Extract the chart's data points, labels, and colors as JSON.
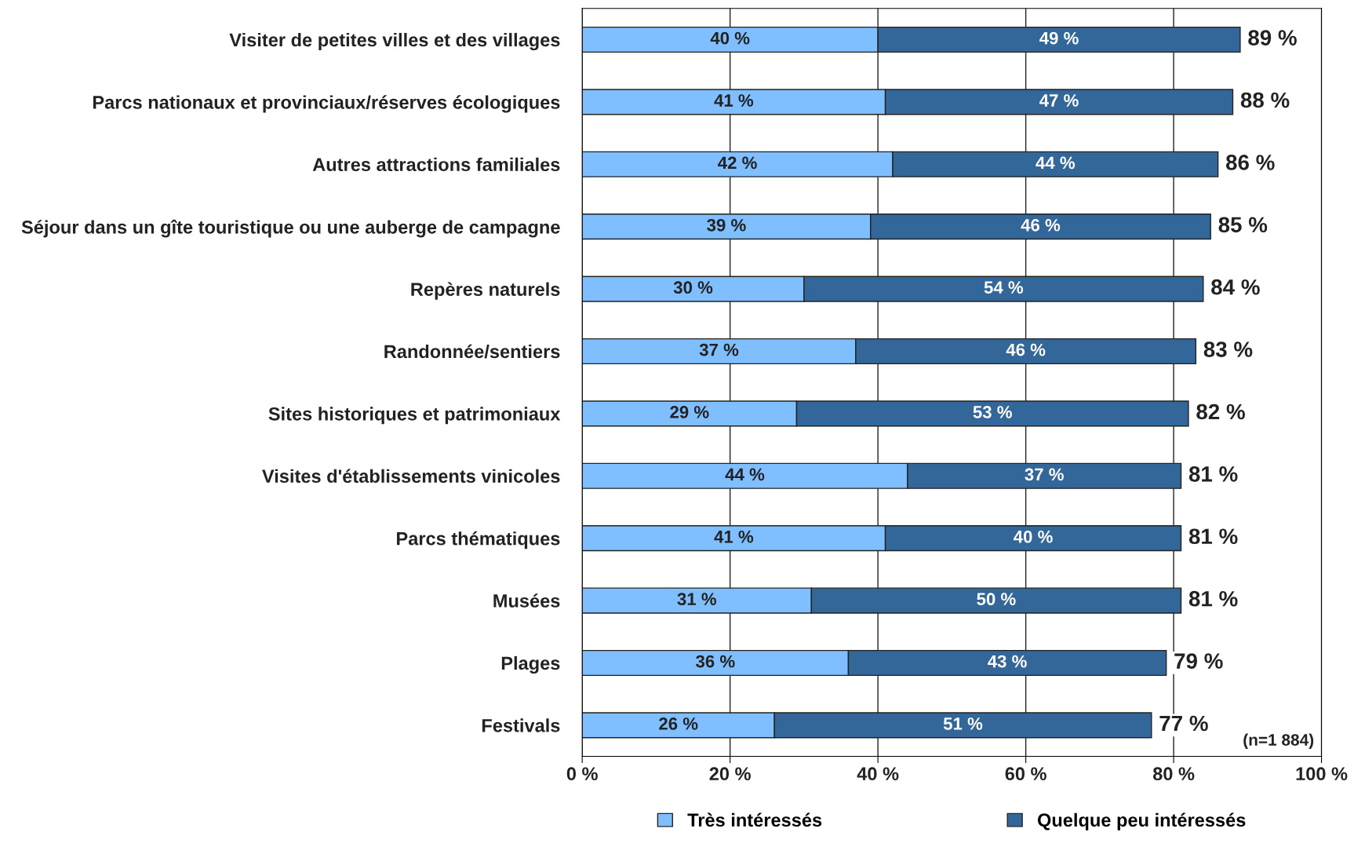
{
  "chart_data": {
    "type": "bar",
    "orientation": "horizontal",
    "stacked": true,
    "categories": [
      "Visiter de petites villes et des villages",
      "Parcs nationaux et provinciaux/réserves écologiques",
      "Autres attractions familiales",
      "Séjour dans un gîte touristique ou une auberge de campagne",
      "Repères naturels",
      "Randonnée/sentiers",
      "Sites historiques et patrimoniaux",
      "Visites d'établissements vinicoles",
      "Parcs thématiques",
      "Musées",
      "Plages",
      "Festivals"
    ],
    "series": [
      {
        "name": "Très intéressés",
        "color": "#7fbfff",
        "values": [
          40,
          41,
          42,
          39,
          30,
          37,
          29,
          44,
          41,
          31,
          36,
          26
        ],
        "value_labels": [
          "40 %",
          "41 %",
          "42 %",
          "39 %",
          "30 %",
          "37 %",
          "29 %",
          "44 %",
          "41 %",
          "31 %",
          "36 %",
          "26 %"
        ]
      },
      {
        "name": "Quelque peu intéressés",
        "color": "#336699",
        "values": [
          49,
          47,
          44,
          46,
          54,
          46,
          53,
          37,
          40,
          50,
          43,
          51
        ],
        "value_labels": [
          "49 %",
          "47 %",
          "44 %",
          "46 %",
          "54 %",
          "46 %",
          "53 %",
          "37 %",
          "40 %",
          "50 %",
          "43 %",
          "51 %"
        ]
      }
    ],
    "totals": [
      "89 %",
      "88 %",
      "86 %",
      "85 %",
      "84 %",
      "83 %",
      "82 %",
      "81 %",
      "81 %",
      "81 %",
      "79 %",
      "77 %"
    ],
    "xlim": [
      0,
      100
    ],
    "xticks": [
      {
        "value": 0,
        "label": "0 %"
      },
      {
        "value": 20,
        "label": "20 %"
      },
      {
        "value": 40,
        "label": "40 %"
      },
      {
        "value": 60,
        "label": "60 %"
      },
      {
        "value": 80,
        "label": "80 %"
      },
      {
        "value": 100,
        "label": "100 %"
      }
    ],
    "grid": "x",
    "legend": "bottom",
    "annotations": [
      "(n=1 884)"
    ]
  }
}
